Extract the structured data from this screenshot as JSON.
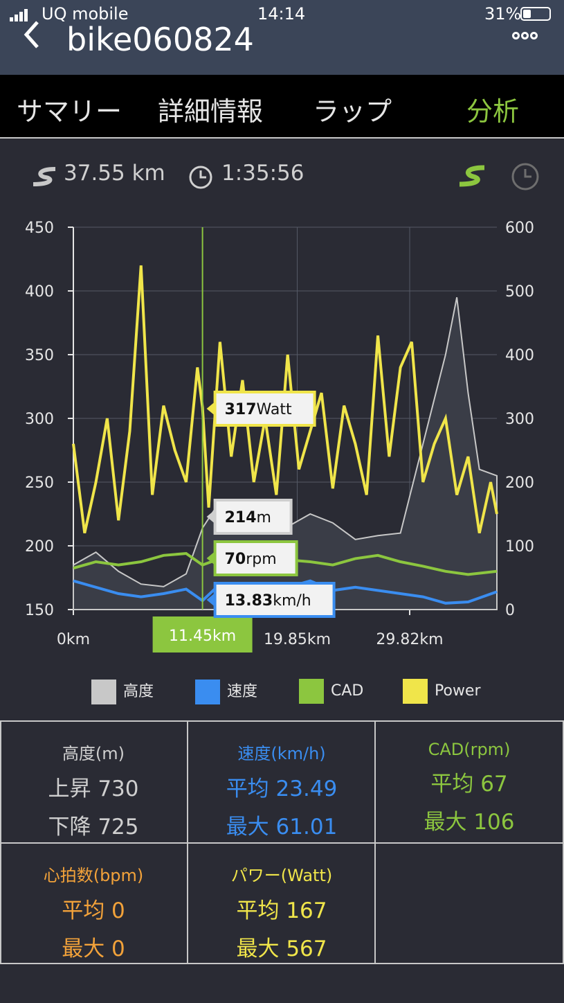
{
  "status": {
    "carrier": "UQ mobile",
    "time": "14:14",
    "battery": "31%"
  },
  "nav": {
    "title": "bike060824",
    "back_icon": "chevron-left-icon",
    "more_icon": "more-dots-icon"
  },
  "tabs": [
    {
      "label": "サマリー",
      "active": false
    },
    {
      "label": "詳細情報",
      "active": false
    },
    {
      "label": "ラップ",
      "active": false
    },
    {
      "label": "分析",
      "active": true
    }
  ],
  "summary": {
    "distance": "37.55 km",
    "duration": "1:35:56"
  },
  "chart_data": {
    "type": "area",
    "x_tick_labels": [
      "0km",
      "19.85km",
      "29.82km"
    ],
    "cursor_label": "11.45km",
    "y_left": {
      "ticks": [
        "450",
        "400",
        "350",
        "300",
        "250",
        "200",
        "150"
      ],
      "range": [
        150,
        450
      ]
    },
    "y_right": {
      "ticks": [
        "600",
        "500",
        "400",
        "300",
        "200",
        "100",
        "0"
      ],
      "range": [
        0,
        600
      ]
    },
    "tooltips": [
      {
        "value": "317",
        "unit": "Watt",
        "color": "#f0e54a"
      },
      {
        "value": "214",
        "unit": "m",
        "color": "#cfcfcf"
      },
      {
        "value": "70",
        "unit": "rpm",
        "color": "#8cc63f"
      },
      {
        "value": "13.83",
        "unit": "km/h",
        "color": "#3a8df0"
      }
    ],
    "series": [
      {
        "name": "高度",
        "color": "#c8c8c8",
        "axis": "left",
        "x": [
          0,
          2,
          4,
          6,
          8,
          10,
          11.45,
          13,
          15,
          17,
          19,
          21,
          23,
          25,
          27,
          29,
          31,
          33,
          34,
          35,
          36,
          37.55
        ],
        "values": [
          185,
          195,
          180,
          170,
          168,
          178,
          214,
          235,
          220,
          228,
          215,
          225,
          218,
          205,
          208,
          210,
          280,
          350,
          395,
          320,
          260,
          255
        ]
      },
      {
        "name": "速度",
        "color": "#3a8df0",
        "axis": "right",
        "x": [
          0,
          2,
          4,
          6,
          8,
          10,
          11.45,
          13,
          15,
          17,
          19,
          21,
          23,
          25,
          27,
          29,
          31,
          33,
          35,
          37.55
        ],
        "values": [
          45,
          35,
          25,
          20,
          25,
          32,
          14,
          40,
          35,
          30,
          35,
          45,
          30,
          35,
          30,
          25,
          20,
          10,
          12,
          28
        ]
      },
      {
        "name": "CAD",
        "color": "#8cc63f",
        "axis": "right",
        "x": [
          0,
          2,
          4,
          6,
          8,
          10,
          11.45,
          13,
          15,
          17,
          19,
          21,
          23,
          25,
          27,
          29,
          31,
          33,
          35,
          37.55
        ],
        "values": [
          65,
          75,
          70,
          75,
          85,
          88,
          70,
          80,
          82,
          80,
          78,
          75,
          70,
          80,
          85,
          75,
          68,
          60,
          55,
          60
        ]
      },
      {
        "name": "Power",
        "color": "#f0e54a",
        "axis": "right",
        "x": [
          0,
          1,
          2,
          3,
          4,
          5,
          6,
          7,
          8,
          9,
          10,
          11,
          11.45,
          12,
          13,
          14,
          15,
          16,
          17,
          18,
          19,
          20,
          21,
          22,
          23,
          24,
          25,
          26,
          27,
          28,
          29,
          30,
          31,
          32,
          33,
          34,
          35,
          36,
          37,
          37.55
        ],
        "values": [
          260,
          120,
          200,
          300,
          140,
          280,
          540,
          180,
          320,
          250,
          200,
          380,
          317,
          160,
          420,
          240,
          360,
          200,
          300,
          180,
          400,
          220,
          280,
          340,
          190,
          320,
          260,
          180,
          430,
          240,
          380,
          420,
          200,
          260,
          300,
          180,
          240,
          120,
          200,
          150
        ]
      }
    ]
  },
  "legend": [
    {
      "label": "高度",
      "color": "#c8c8c8"
    },
    {
      "label": "速度",
      "color": "#3a8df0"
    },
    {
      "label": "CAD",
      "color": "#8cc63f"
    },
    {
      "label": "Power",
      "color": "#f0e54a"
    }
  ],
  "stats": {
    "elevation": {
      "header": "高度(m)",
      "line1": "上昇 730",
      "line2": "下降 725"
    },
    "speed": {
      "header": "速度(km/h)",
      "line1": "平均 23.49",
      "line2": "最大 61.01"
    },
    "cadence": {
      "header": "CAD(rpm)",
      "line1": "平均 67",
      "line2": "最大 106"
    },
    "heartrate": {
      "header": "心拍数(bpm)",
      "line1": "平均 0",
      "line2": "最大 0"
    },
    "power": {
      "header": "パワー(Watt)",
      "line1": "平均 167",
      "line2": "最大 567"
    }
  }
}
